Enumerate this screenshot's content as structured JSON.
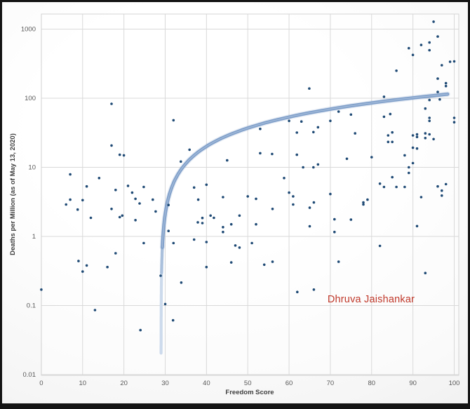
{
  "chart_data": {
    "type": "scatter",
    "title": "",
    "xlabel": "Freedom Score",
    "ylabel": "Deaths per Million (as of May 13, 2020)",
    "x_ticks": [
      0,
      10,
      20,
      30,
      40,
      50,
      60,
      70,
      80,
      90,
      100
    ],
    "x_tick_labels": [
      "0",
      "10",
      "20",
      "30",
      "40",
      "50",
      "60",
      "70",
      "80",
      "90",
      "100"
    ],
    "y_ticks": [
      1000,
      100,
      10,
      1,
      0.1,
      0.01
    ],
    "y_tick_labels": [
      "1000",
      "100",
      "10",
      "1",
      "0.1",
      "0.01"
    ],
    "xlim": [
      0,
      101.3
    ],
    "ylim": [
      0.01,
      1660
    ],
    "y_scale": "log",
    "grid": true,
    "legend": false,
    "points": [
      [
        0,
        0.17
      ],
      [
        6,
        2.9
      ],
      [
        7,
        3.4
      ],
      [
        7,
        7.9
      ],
      [
        8.8,
        2.45
      ],
      [
        9,
        0.44
      ],
      [
        10,
        3.35
      ],
      [
        10,
        0.31
      ],
      [
        11,
        5.3
      ],
      [
        11,
        0.38
      ],
      [
        12,
        1.86
      ],
      [
        13,
        0.086
      ],
      [
        14,
        7.0
      ],
      [
        16,
        0.36
      ],
      [
        17,
        83
      ],
      [
        17,
        20.7
      ],
      [
        17,
        2.5
      ],
      [
        18,
        4.7
      ],
      [
        18,
        0.57
      ],
      [
        19,
        15.2
      ],
      [
        19,
        1.9
      ],
      [
        19.6,
        2.0
      ],
      [
        20,
        14.9
      ],
      [
        21,
        5.4
      ],
      [
        22,
        4.3
      ],
      [
        22.8,
        3.5
      ],
      [
        22.8,
        1.72
      ],
      [
        23.8,
        3.0
      ],
      [
        24,
        0.044
      ],
      [
        24.8,
        5.2
      ],
      [
        24.8,
        0.8
      ],
      [
        27,
        3.4
      ],
      [
        27.7,
        2.3
      ],
      [
        28.9,
        0.27
      ],
      [
        30,
        0.105
      ],
      [
        30.8,
        2.85
      ],
      [
        30.8,
        1.2
      ],
      [
        32,
        48
      ],
      [
        32,
        0.8
      ],
      [
        31.9,
        0.061
      ],
      [
        33.8,
        12.1
      ],
      [
        33.9,
        0.215
      ],
      [
        35.9,
        18
      ],
      [
        37,
        5.1
      ],
      [
        37,
        0.9
      ],
      [
        38,
        3.4
      ],
      [
        37.9,
        1.6
      ],
      [
        39,
        1.85
      ],
      [
        39,
        1.56
      ],
      [
        40,
        5.6
      ],
      [
        41,
        2.0
      ],
      [
        40,
        0.83
      ],
      [
        40,
        0.36
      ],
      [
        41.8,
        1.86
      ],
      [
        44,
        3.7
      ],
      [
        44,
        1.36
      ],
      [
        44,
        1.16
      ],
      [
        45,
        12.6
      ],
      [
        46,
        1.5
      ],
      [
        46,
        0.42
      ],
      [
        47,
        0.74
      ],
      [
        48,
        2.0
      ],
      [
        48,
        0.69
      ],
      [
        50,
        3.8
      ],
      [
        51,
        0.8
      ],
      [
        52,
        3.5
      ],
      [
        52,
        1.5
      ],
      [
        53,
        36
      ],
      [
        53,
        16
      ],
      [
        54,
        0.39
      ],
      [
        55.9,
        15.6
      ],
      [
        56,
        2.5
      ],
      [
        56,
        0.43
      ],
      [
        58.8,
        7.0
      ],
      [
        60,
        47
      ],
      [
        60,
        4.3
      ],
      [
        61,
        3.8
      ],
      [
        61,
        2.9
      ],
      [
        61.9,
        31.8
      ],
      [
        61.9,
        15.2
      ],
      [
        62,
        0.157
      ],
      [
        63,
        46
      ],
      [
        63.4,
        10
      ],
      [
        64.9,
        138
      ],
      [
        65,
        2.6
      ],
      [
        65,
        1.4
      ],
      [
        65.9,
        32.3
      ],
      [
        65.9,
        10
      ],
      [
        66,
        3.1
      ],
      [
        66,
        0.17
      ],
      [
        67,
        38
      ],
      [
        67,
        11
      ],
      [
        70,
        47
      ],
      [
        70,
        4.1
      ],
      [
        71,
        1.77
      ],
      [
        71,
        1.16
      ],
      [
        72,
        64
      ],
      [
        72,
        0.43
      ],
      [
        74,
        13.3
      ],
      [
        75,
        58
      ],
      [
        75,
        1.75
      ],
      [
        76,
        31
      ],
      [
        78,
        2.9
      ],
      [
        78,
        3.1
      ],
      [
        79,
        3.4
      ],
      [
        80,
        14
      ],
      [
        82,
        5.8
      ],
      [
        82,
        0.73
      ],
      [
        83,
        105
      ],
      [
        83,
        54
      ],
      [
        83,
        5.2
      ],
      [
        84.5,
        59
      ],
      [
        85,
        32
      ],
      [
        84,
        29
      ],
      [
        84,
        23.3
      ],
      [
        85,
        23.3
      ],
      [
        85,
        7.2
      ],
      [
        86,
        250
      ],
      [
        86,
        5.2
      ],
      [
        88,
        14.9
      ],
      [
        88,
        5.2
      ],
      [
        89,
        10
      ],
      [
        89,
        8.3
      ],
      [
        89,
        530
      ],
      [
        90,
        423
      ],
      [
        90,
        29
      ],
      [
        90,
        19.2
      ],
      [
        90,
        11.5
      ],
      [
        91,
        30
      ],
      [
        91,
        27.5
      ],
      [
        91,
        18.7
      ],
      [
        91,
        1.41
      ],
      [
        92,
        590
      ],
      [
        92,
        3.7
      ],
      [
        93,
        71
      ],
      [
        93,
        31
      ],
      [
        93,
        26.5
      ],
      [
        93,
        0.295
      ],
      [
        94,
        640
      ],
      [
        94,
        495
      ],
      [
        94,
        94
      ],
      [
        94,
        52
      ],
      [
        94,
        47
      ],
      [
        94,
        30
      ],
      [
        95,
        1280
      ],
      [
        95,
        25.6
      ],
      [
        96,
        780
      ],
      [
        96,
        192
      ],
      [
        96,
        123
      ],
      [
        96,
        5.3
      ],
      [
        96.5,
        96
      ],
      [
        97,
        300
      ],
      [
        97,
        4.6
      ],
      [
        97,
        3.9
      ],
      [
        98,
        165
      ],
      [
        98,
        150
      ],
      [
        98,
        5.7
      ],
      [
        99,
        337
      ],
      [
        100,
        341
      ],
      [
        100,
        52
      ],
      [
        100,
        45
      ]
    ],
    "trendline": {
      "type": "logarithmic-fit",
      "formula_log10y": "0.41 * ln(x - 29) + 0.32",
      "a": 0.41,
      "b": 0.32,
      "x_asymptote": 29,
      "x_range": [
        29.008,
        100
      ],
      "color": "#7d9dc8",
      "highlight_color": "#9fb8d8",
      "fade_colors": [
        "#ccdaec",
        "#aac0dc"
      ]
    },
    "annotation": {
      "text": "Dhruva Jaishankar",
      "x": 80,
      "y": 0.126,
      "color": "#c0392b"
    }
  },
  "styles": {
    "point_color": "#1f4a75",
    "gridline_color": "#d9d9d9",
    "plot_border_color": "#d4d4d4",
    "tick_label_color": "#595959",
    "axis_title_color": "#3f3f3f",
    "figure_border_color": "#141414"
  }
}
